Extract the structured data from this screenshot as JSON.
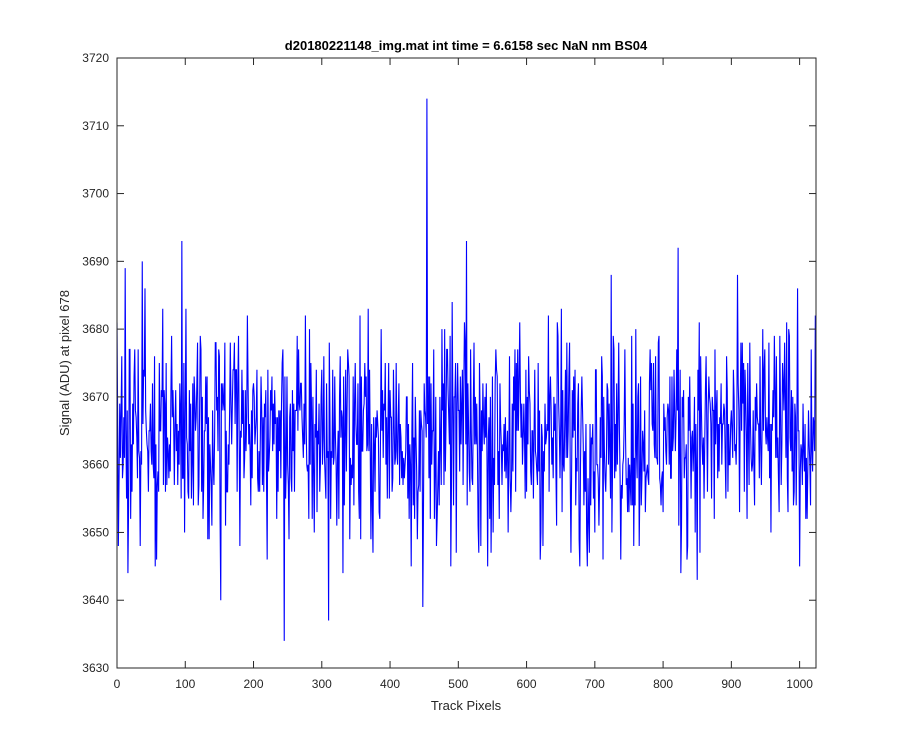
{
  "chart_data": {
    "type": "line",
    "title": "d20180221148_img.mat int time = 6.6158 sec  NaN nm BS04",
    "xlabel": "Track Pixels",
    "ylabel": "Signal (ADU) at pixel 678",
    "xlim": [
      0,
      1024
    ],
    "ylim": [
      3630,
      3720
    ],
    "xticks": [
      0,
      100,
      200,
      300,
      400,
      500,
      600,
      700,
      800,
      900,
      1000
    ],
    "yticks": [
      3630,
      3640,
      3650,
      3660,
      3670,
      3680,
      3690,
      3700,
      3710,
      3720
    ],
    "grid": false,
    "line_color": "#0000ff",
    "series": [
      {
        "values_description": "approximate signal trace (1024 points; noise around 3664 with spikes)",
        "key_points": [
          {
            "x": 0,
            "y": 3681
          },
          {
            "x": 12,
            "y": 3689
          },
          {
            "x": 16,
            "y": 3644
          },
          {
            "x": 37,
            "y": 3690
          },
          {
            "x": 95,
            "y": 3693
          },
          {
            "x": 152,
            "y": 3640
          },
          {
            "x": 245,
            "y": 3634
          },
          {
            "x": 310,
            "y": 3637
          },
          {
            "x": 448,
            "y": 3639
          },
          {
            "x": 454,
            "y": 3714
          },
          {
            "x": 512,
            "y": 3693
          },
          {
            "x": 822,
            "y": 3692
          },
          {
            "x": 826,
            "y": 3644
          },
          {
            "x": 1000,
            "y": 3645
          },
          {
            "x": 1023,
            "y": 3682
          }
        ]
      }
    ]
  }
}
